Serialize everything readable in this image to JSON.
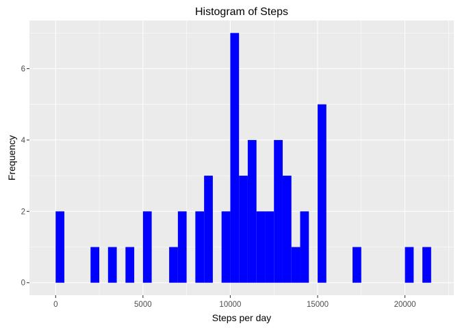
{
  "chart_data": {
    "type": "bar",
    "title": "Histogram of Steps",
    "xlabel": "Steps per day",
    "ylabel": "Frequency",
    "bar_color": "#0000ff",
    "panel_color": "#ebebeb",
    "xlim": [
      -1500,
      22800
    ],
    "ylim": [
      -0.35,
      7.35
    ],
    "bin_width": 500,
    "x_ticks": [
      0,
      5000,
      10000,
      15000,
      20000
    ],
    "x_tick_labels": [
      "0",
      "5000",
      "10000",
      "15000",
      "20000"
    ],
    "y_ticks": [
      0,
      2,
      4,
      6
    ],
    "y_tick_labels": [
      "0",
      "2",
      "4",
      "6"
    ],
    "bins": [
      {
        "x": 250,
        "count": 2
      },
      {
        "x": 2250,
        "count": 1
      },
      {
        "x": 3250,
        "count": 1
      },
      {
        "x": 4250,
        "count": 1
      },
      {
        "x": 5250,
        "count": 2
      },
      {
        "x": 6750,
        "count": 1
      },
      {
        "x": 7250,
        "count": 2
      },
      {
        "x": 8250,
        "count": 2
      },
      {
        "x": 8750,
        "count": 3
      },
      {
        "x": 9750,
        "count": 2
      },
      {
        "x": 10250,
        "count": 7
      },
      {
        "x": 10750,
        "count": 3
      },
      {
        "x": 11250,
        "count": 4
      },
      {
        "x": 11750,
        "count": 2
      },
      {
        "x": 12250,
        "count": 2
      },
      {
        "x": 12750,
        "count": 4
      },
      {
        "x": 13250,
        "count": 3
      },
      {
        "x": 13750,
        "count": 1
      },
      {
        "x": 14250,
        "count": 2
      },
      {
        "x": 15250,
        "count": 5
      },
      {
        "x": 17250,
        "count": 1
      },
      {
        "x": 20250,
        "count": 1
      },
      {
        "x": 21250,
        "count": 1
      }
    ]
  }
}
